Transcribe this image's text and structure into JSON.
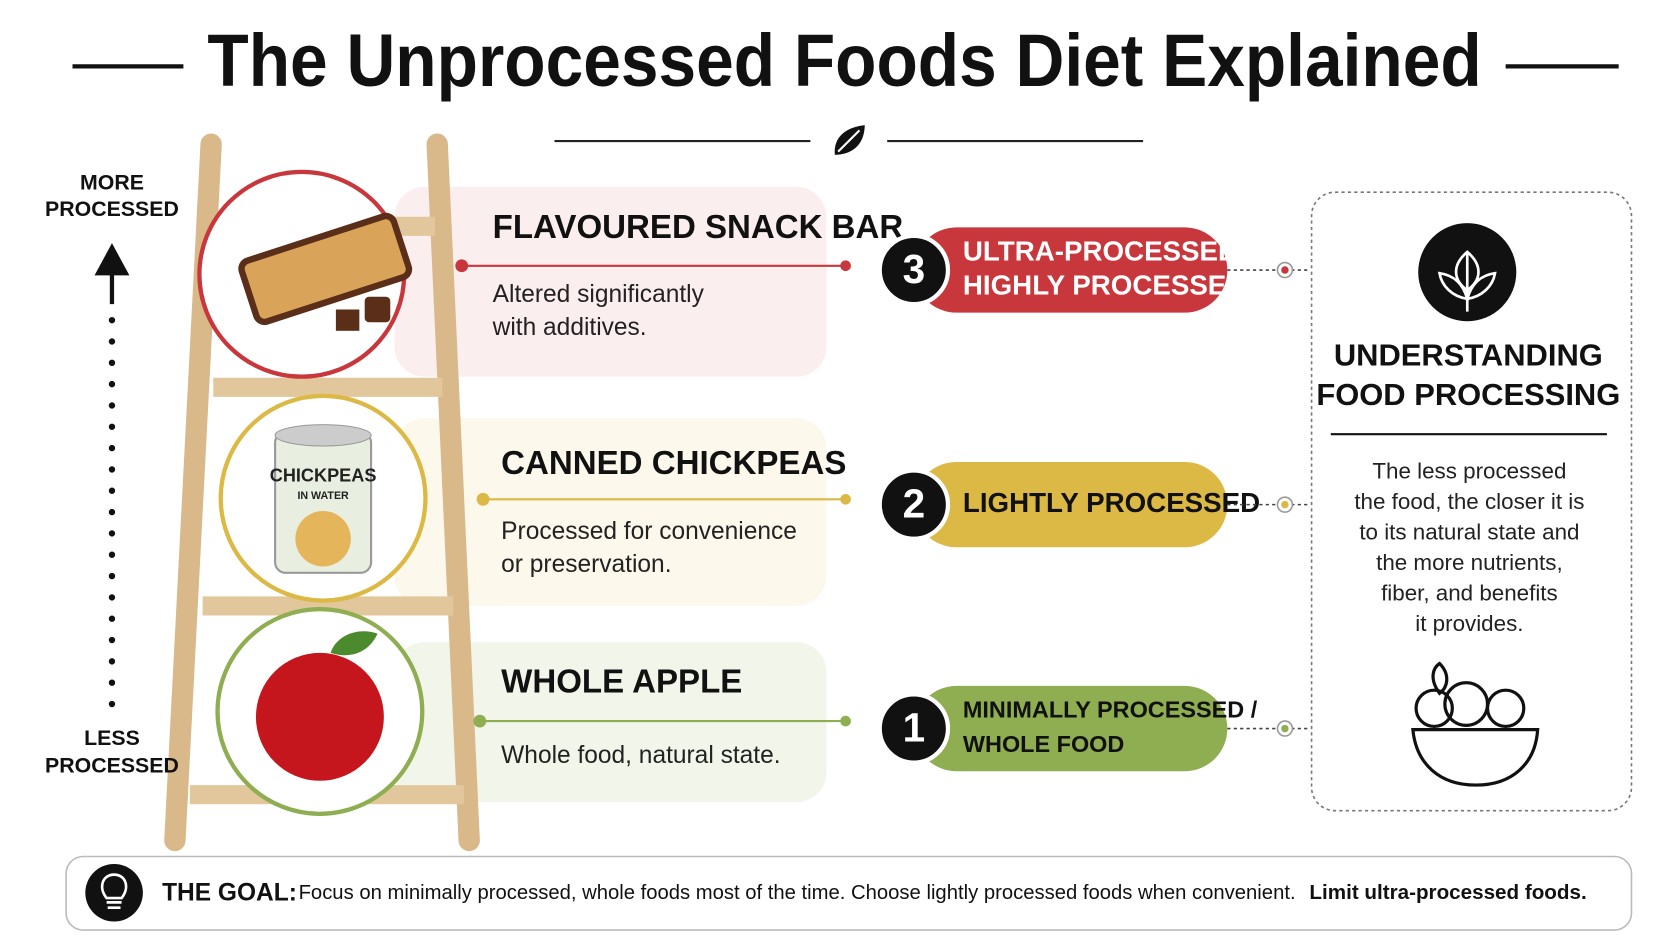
{
  "header": {
    "title": "The Unprocessed Foods Diet Explained"
  },
  "scale": {
    "top": [
      "MORE",
      "PROCESSED"
    ],
    "bottom": [
      "LESS",
      "PROCESSED"
    ]
  },
  "levels": [
    {
      "title": "FLAVOURED SNACK BAR",
      "description": [
        "Altered significantly",
        "with additives."
      ],
      "number": "3",
      "label": [
        "ULTRA-PROCESSED /",
        "HIGHLY PROCESSED"
      ],
      "color": "#c8373c",
      "tint": "#fbeeee"
    },
    {
      "title": "CANNED CHICKPEAS",
      "description": [
        "Processed for convenience",
        "or preservation."
      ],
      "number": "2",
      "label": [
        "LIGHTLY PROCESSED"
      ],
      "color": "#dcb845",
      "tint": "#fcf8ec",
      "can_label": [
        "CHICKPEAS",
        "IN WATER"
      ]
    },
    {
      "title": "WHOLE APPLE",
      "description": [
        "Whole food, natural state."
      ],
      "number": "1",
      "label": [
        "MINIMALLY PROCESSED /",
        "WHOLE FOOD"
      ],
      "color": "#8fae52",
      "tint": "#f1f5ea"
    }
  ],
  "panel": {
    "heading": [
      "UNDERSTANDING",
      "FOOD PROCESSING"
    ],
    "body": [
      "The less processed",
      "the food, the closer it is",
      "to its natural state and",
      "the more nutrients,",
      "fiber, and benefits",
      "it provides."
    ]
  },
  "goal": {
    "label": "THE GOAL:",
    "text": "Focus on minimally processed, whole foods most of the time. Choose lightly processed foods when convenient.",
    "emphasis": "Limit ultra-processed foods."
  }
}
